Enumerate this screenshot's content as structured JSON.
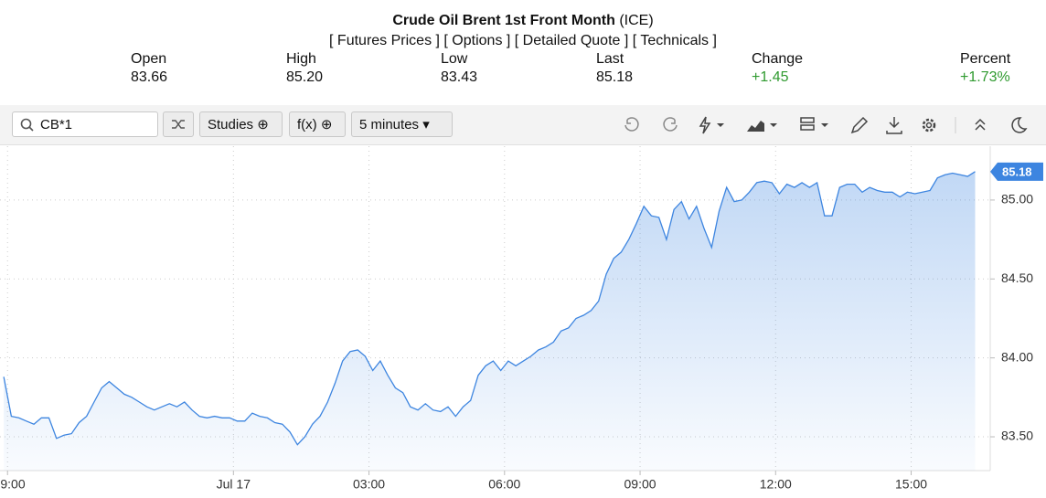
{
  "header": {
    "title": "Crude Oil Brent 1st Front Month",
    "exchange": "(ICE)",
    "links": [
      "[ Futures Prices ]",
      "[ Options ]",
      "[ Detailed Quote ]",
      "[ Technicals ]"
    ]
  },
  "quote": [
    {
      "label": "Open",
      "value": "83.66"
    },
    {
      "label": "High",
      "value": "85.20"
    },
    {
      "label": "Low",
      "value": "83.43"
    },
    {
      "label": "Last",
      "value": "85.18"
    },
    {
      "label": "Change",
      "value": "+1.45"
    },
    {
      "label": "Percent",
      "value": "+1.73%"
    }
  ],
  "toolbar": {
    "symbol": "CB*1",
    "studies": "Studies",
    "fx": "f(x)",
    "interval": "5 minutes"
  },
  "chart_data": {
    "type": "area",
    "x": [
      -1,
      1,
      3,
      5,
      7,
      9,
      11,
      13,
      15,
      17,
      19,
      21,
      23,
      25,
      27,
      29,
      31,
      33,
      35,
      37,
      39,
      41,
      43,
      45,
      47,
      49,
      51,
      53,
      55,
      57,
      59,
      61,
      63,
      65,
      67,
      69,
      71,
      73,
      75,
      77,
      79,
      81,
      83,
      85,
      87,
      89,
      91,
      93,
      95,
      97,
      99,
      101,
      103,
      105,
      107,
      109,
      111,
      113,
      115,
      117,
      119,
      121,
      123,
      125,
      127,
      129,
      131,
      133,
      135,
      137,
      139,
      141,
      143,
      145,
      147,
      149,
      151,
      153,
      155,
      157,
      159,
      161,
      163,
      165,
      167,
      169,
      171,
      173,
      175,
      177,
      179,
      181,
      183,
      185,
      187,
      189,
      191,
      193,
      195,
      197,
      199,
      201,
      203,
      205,
      207,
      209,
      211,
      213,
      215,
      217,
      219,
      221,
      223,
      225,
      227,
      229,
      231,
      233,
      235,
      237,
      239,
      241,
      243,
      245,
      247,
      249,
      251,
      253,
      255,
      257
    ],
    "series": [
      {
        "color": "#3d85e0",
        "values": [
          83.88,
          83.63,
          83.62,
          83.6,
          83.58,
          83.62,
          83.62,
          83.49,
          83.51,
          83.52,
          83.59,
          83.63,
          83.72,
          83.81,
          83.85,
          83.81,
          83.77,
          83.75,
          83.72,
          83.69,
          83.67,
          83.69,
          83.71,
          83.69,
          83.72,
          83.67,
          83.63,
          83.62,
          83.63,
          83.62,
          83.62,
          83.6,
          83.6,
          83.65,
          83.63,
          83.62,
          83.59,
          83.58,
          83.53,
          83.45,
          83.5,
          83.58,
          83.63,
          83.72,
          83.84,
          83.98,
          84.04,
          84.05,
          84.01,
          83.92,
          83.98,
          83.89,
          83.81,
          83.78,
          83.69,
          83.67,
          83.71,
          83.67,
          83.66,
          83.69,
          83.63,
          83.69,
          83.73,
          83.89,
          83.95,
          83.98,
          83.92,
          83.98,
          83.95,
          83.98,
          84.01,
          84.05,
          84.07,
          84.1,
          84.17,
          84.19,
          84.25,
          84.27,
          84.3,
          84.36,
          84.53,
          84.63,
          84.67,
          84.75,
          84.85,
          84.96,
          84.9,
          84.89,
          84.75,
          84.94,
          84.99,
          84.88,
          84.96,
          84.82,
          84.7,
          84.93,
          85.08,
          84.99,
          85.0,
          85.05,
          85.11,
          85.12,
          85.11,
          85.04,
          85.1,
          85.08,
          85.11,
          85.08,
          85.11,
          84.9,
          84.9,
          85.08,
          85.1,
          85.1,
          85.05,
          85.08,
          85.06,
          85.05,
          85.05,
          85.02,
          85.05,
          85.04,
          85.05,
          85.06,
          85.14,
          85.16,
          85.17,
          85.16,
          85.15,
          85.18
        ]
      }
    ],
    "xlim": [
      -2,
      261
    ],
    "xticks": [
      {
        "value": 0,
        "label": "9:00"
      },
      {
        "value": 60,
        "label": "Jul 17"
      },
      {
        "value": 96,
        "label": "03:00"
      },
      {
        "value": 132,
        "label": "06:00"
      },
      {
        "value": 168,
        "label": "09:00"
      },
      {
        "value": 204,
        "label": "12:00"
      },
      {
        "value": 240,
        "label": "15:00"
      }
    ],
    "ylim": [
      83.286,
      85.341
    ],
    "yticks": [
      {
        "value": 83.5,
        "label": "83.50"
      },
      {
        "value": 84,
        "label": "84.00"
      },
      {
        "value": 84.5,
        "label": "84.50"
      },
      {
        "value": 85,
        "label": "85.00"
      }
    ],
    "grid": true
  }
}
